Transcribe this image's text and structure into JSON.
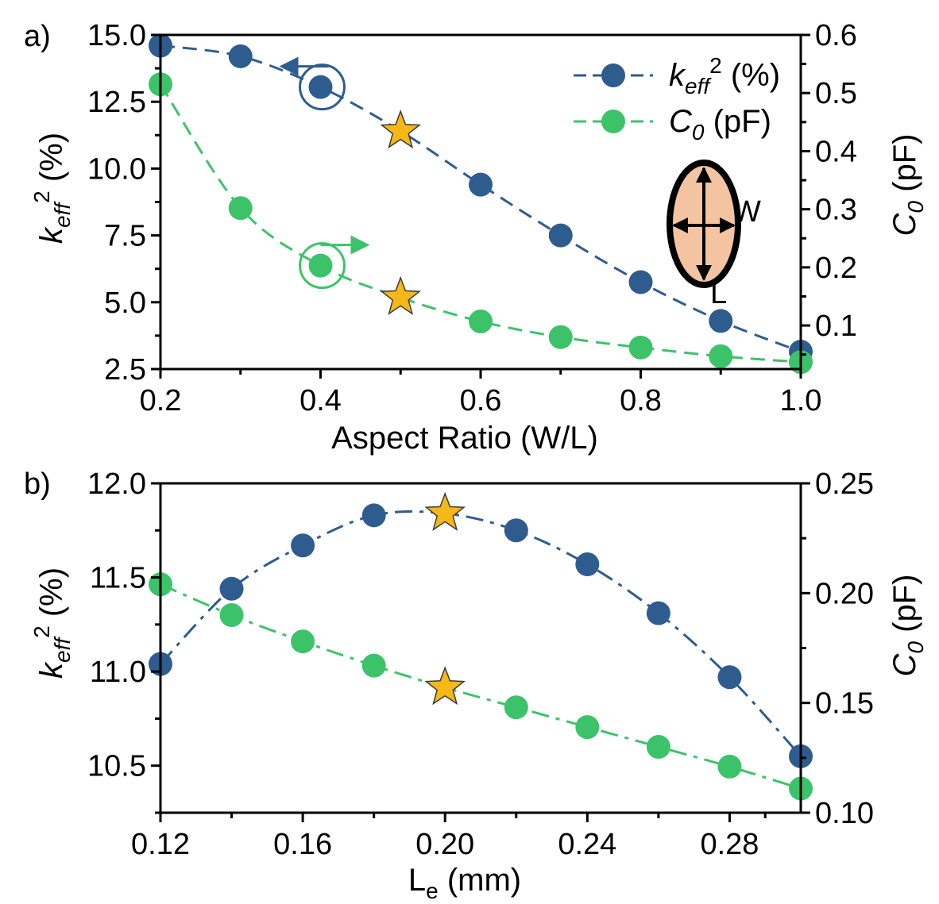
{
  "colors": {
    "blue": "#2F5C8F",
    "green": "#3CC36A",
    "star": "#F6B817",
    "ellipse_fill": "#F3C3A2"
  },
  "chart_data": [
    {
      "type": "line",
      "panel_label": "a)",
      "title": "",
      "xlabel": "Aspect Ratio (W/L)",
      "ylabel_left": "keff² (%)",
      "ylabel_right": "C0 (pF)",
      "xlim": [
        0.2,
        1.0
      ],
      "ylim_left": [
        2.5,
        15.0
      ],
      "ylim_right": [
        0.025,
        0.6
      ],
      "xticks": [
        "0.2",
        "0.4",
        "0.6",
        "0.8",
        "1.0"
      ],
      "yticks_left": [
        "2.5",
        "5.0",
        "7.5",
        "10.0",
        "12.5",
        "15.0"
      ],
      "yticks_right": [
        "0.1",
        "0.2",
        "0.3",
        "0.4",
        "0.5",
        "0.6"
      ],
      "x": [
        0.2,
        0.3,
        0.4,
        0.5,
        0.6,
        0.7,
        0.8,
        0.9,
        1.0
      ],
      "series": [
        {
          "name": "keff2",
          "axis": "left",
          "dash": "dash",
          "values": [
            14.6,
            14.2,
            13.05,
            11.4,
            9.4,
            7.5,
            5.75,
            4.3,
            3.15
          ]
        },
        {
          "name": "C0",
          "axis": "right",
          "dash": "dash",
          "values": [
            0.515,
            0.302,
            0.203,
            0.148,
            0.107,
            0.08,
            0.062,
            0.047,
            0.037
          ]
        }
      ],
      "stars": [
        {
          "x": 0.5,
          "series": "keff2"
        },
        {
          "x": 0.5,
          "series": "C0"
        }
      ],
      "axis_indicators": [
        {
          "x": 0.4,
          "series": "keff2",
          "direction": "left"
        },
        {
          "x": 0.4,
          "series": "C0",
          "direction": "right"
        }
      ],
      "legend": {
        "position": "top-right",
        "entries": [
          {
            "series": "keff2",
            "base": "k",
            "sub": "eff",
            "sup": "2",
            "rest": " (%)"
          },
          {
            "series": "C0",
            "base": "C",
            "sub": "0",
            "sup": "",
            "rest": " (pF)"
          }
        ]
      },
      "inset": {
        "label_w": "W",
        "label_l": "L"
      }
    },
    {
      "type": "line",
      "panel_label": "b)",
      "title": "",
      "xlabel": "Le (mm)",
      "ylabel_left": "keff² (%)",
      "ylabel_right": "C0 (pF)",
      "xlim": [
        0.12,
        0.3
      ],
      "ylim_left": [
        10.25,
        12.0
      ],
      "ylim_right": [
        0.1,
        0.25
      ],
      "xticks": [
        "0.12",
        "0.16",
        "0.20",
        "0.24",
        "0.28"
      ],
      "yticks_left": [
        "10.5",
        "11.0",
        "11.5",
        "12.0"
      ],
      "yticks_right": [
        "0.10",
        "0.15",
        "0.20",
        "0.25"
      ],
      "x": [
        0.12,
        0.14,
        0.16,
        0.18,
        0.2,
        0.22,
        0.24,
        0.26,
        0.28,
        0.3
      ],
      "series": [
        {
          "name": "keff2",
          "axis": "left",
          "dash": "dashdot",
          "values": [
            11.04,
            11.44,
            11.67,
            11.83,
            11.84,
            11.75,
            11.57,
            11.31,
            10.97,
            10.55
          ]
        },
        {
          "name": "C0",
          "axis": "right",
          "dash": "dashdot",
          "values": [
            0.204,
            0.19,
            0.178,
            0.167,
            0.157,
            0.148,
            0.139,
            0.13,
            0.121,
            0.111
          ]
        }
      ],
      "stars": [
        {
          "x": 0.2,
          "series": "keff2"
        },
        {
          "x": 0.2,
          "series": "C0"
        }
      ]
    }
  ]
}
